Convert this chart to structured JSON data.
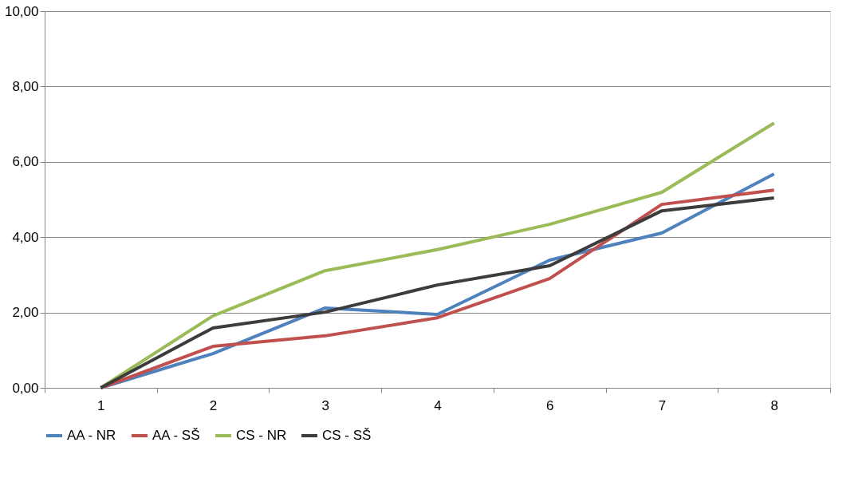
{
  "chart_data": {
    "type": "line",
    "categories": [
      "1",
      "2",
      "3",
      "4",
      "6",
      "7",
      "8"
    ],
    "series": [
      {
        "name": "AA - NR",
        "color": "#4f81bd",
        "values": [
          0,
          0.91,
          2.12,
          1.95,
          3.39,
          4.11,
          5.68
        ]
      },
      {
        "name": "AA - SŠ",
        "color": "#c0504d",
        "values": [
          0,
          1.1,
          1.38,
          1.86,
          2.9,
          4.87,
          5.25
        ]
      },
      {
        "name": "CS - NR",
        "color": "#9bbb59",
        "values": [
          0,
          1.91,
          3.11,
          3.67,
          4.34,
          5.19,
          7.03
        ]
      },
      {
        "name": "CS - SŠ",
        "color": "#3c3c3c",
        "values": [
          0,
          1.59,
          2.01,
          2.73,
          3.24,
          4.7,
          5.04
        ]
      }
    ],
    "ylim": [
      0,
      10
    ],
    "yticks": [
      {
        "value": 0,
        "label": "0,00"
      },
      {
        "value": 2,
        "label": "2,00"
      },
      {
        "value": 4,
        "label": "4,00"
      },
      {
        "value": 6,
        "label": "6,00"
      },
      {
        "value": 8,
        "label": "8,00"
      },
      {
        "value": 10,
        "label": "10,00"
      }
    ],
    "grid": "y",
    "legend": "bottom",
    "marker": "none",
    "line_style": "solid"
  }
}
